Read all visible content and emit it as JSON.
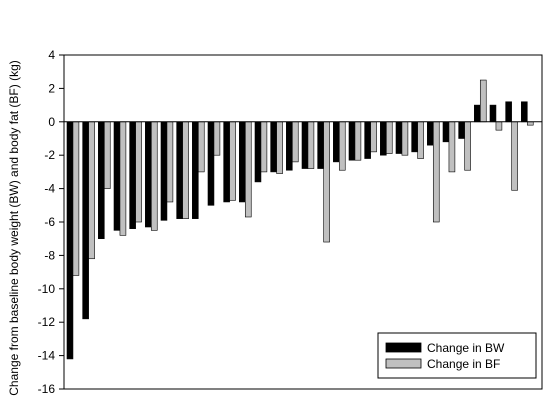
{
  "chart_data": {
    "type": "bar",
    "title": "",
    "xlabel": "",
    "ylabel": "Change from baseline body weight (BW) and body fat (BF) (kg)",
    "ylim": [
      -16,
      4
    ],
    "yticks": [
      4,
      2,
      0,
      -2,
      -4,
      -6,
      -8,
      -10,
      -12,
      -14,
      -16
    ],
    "grid": false,
    "legend_position": "bottom-right",
    "series": [
      {
        "name": "Change in BW",
        "color": "#000000",
        "values": [
          -14.2,
          -11.8,
          -7.0,
          -6.5,
          -6.4,
          -6.3,
          -5.9,
          -5.8,
          -5.8,
          -5.0,
          -4.8,
          -4.8,
          -3.6,
          -3.0,
          -2.9,
          -2.8,
          -2.8,
          -2.4,
          -2.3,
          -2.2,
          -2.0,
          -1.9,
          -1.8,
          -1.4,
          -1.2,
          -1.0,
          1.0,
          1.0,
          1.2,
          1.2
        ]
      },
      {
        "name": "Change in BF",
        "color": "#c0c0c0",
        "values": [
          -9.2,
          -8.2,
          -4.0,
          -6.8,
          -6.0,
          -6.5,
          -4.8,
          -5.8,
          -3.0,
          -2.0,
          -4.7,
          -5.7,
          -3.0,
          -3.1,
          -2.4,
          -2.8,
          -7.2,
          -2.9,
          -2.3,
          -1.8,
          -1.9,
          -2.0,
          -2.2,
          -6.0,
          -3.0,
          -2.9,
          2.5,
          -0.5,
          -4.1,
          -0.2
        ]
      }
    ]
  }
}
